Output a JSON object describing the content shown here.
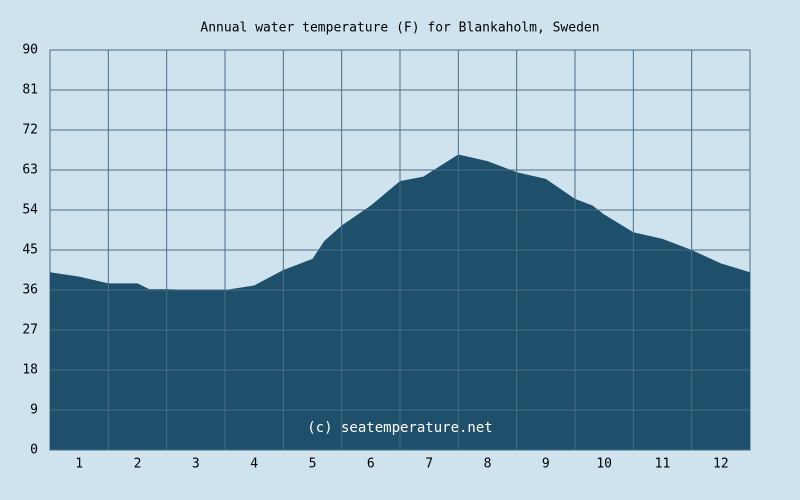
{
  "chart_data": {
    "type": "area",
    "title": "Annual water temperature (F) for Blankaholm, Sweden",
    "annotation": "(c) seatemperature.net",
    "x": [
      0.5,
      1.0,
      1.5,
      2.0,
      2.2,
      2.5,
      3.0,
      3.5,
      4.0,
      4.5,
      5.0,
      5.2,
      5.5,
      6.0,
      6.5,
      6.9,
      7.2,
      7.5,
      8.0,
      8.5,
      9.0,
      9.5,
      9.8,
      10.0,
      10.5,
      11.0,
      11.5,
      12.0,
      12.5
    ],
    "values": [
      40,
      39,
      37.5,
      37.5,
      36.2,
      36.2,
      36,
      36,
      37,
      40.5,
      43,
      47,
      50.5,
      55,
      60.5,
      61.5,
      64,
      66.5,
      65,
      62.5,
      61,
      56.5,
      55,
      53,
      49,
      47.5,
      45,
      42,
      40
    ],
    "color": "#1e4f6b",
    "xlim": [
      0.5,
      12.5
    ],
    "xticks": [
      1,
      2,
      3,
      4,
      5,
      6,
      7,
      8,
      9,
      10,
      11,
      12
    ],
    "ylim": [
      0,
      90
    ],
    "yticks": [
      0,
      9,
      18,
      27,
      36,
      45,
      54,
      63,
      72,
      81,
      90
    ],
    "grid": true
  }
}
